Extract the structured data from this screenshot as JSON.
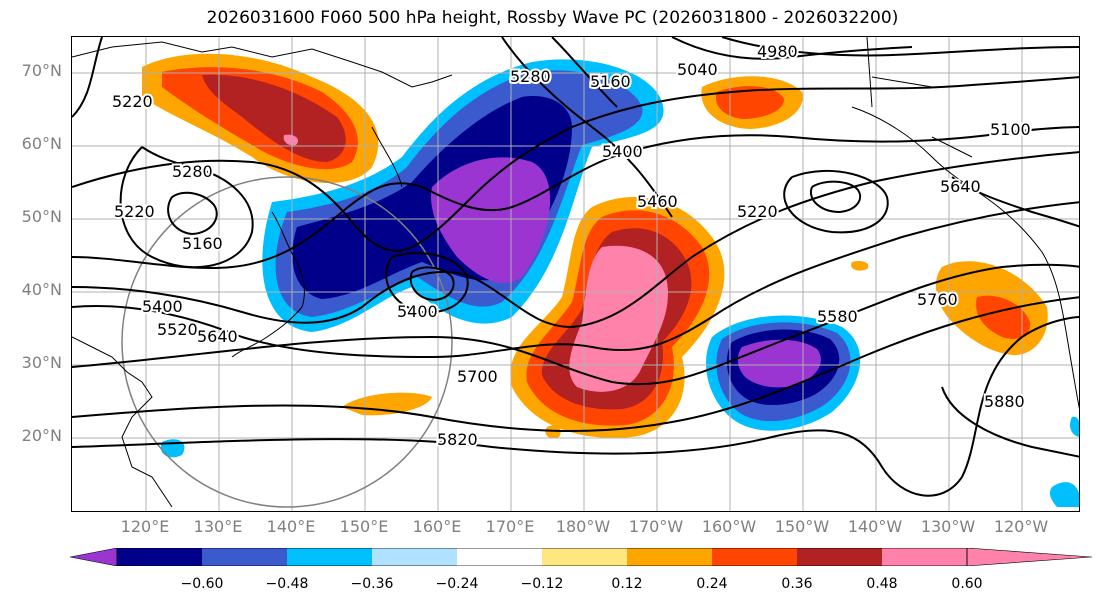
{
  "title": "2026031600 F060 500 hPa height, Rossby Wave PC (2026031800 - 2026032200)",
  "lat_labels": [
    "70°N",
    "60°N",
    "50°N",
    "40°N",
    "30°N",
    "20°N"
  ],
  "lon_labels": [
    "120°E",
    "130°E",
    "140°E",
    "150°E",
    "160°E",
    "170°E",
    "180°W",
    "170°W",
    "160°W",
    "150°W",
    "140°W",
    "130°W",
    "120°W"
  ],
  "contour_labels": [
    "4980",
    "5040",
    "5100",
    "5160",
    "5160",
    "5220",
    "5220",
    "5220",
    "5280",
    "5280",
    "5400",
    "5400",
    "5400",
    "5460",
    "5520",
    "5580",
    "5640",
    "5700",
    "5760",
    "5820",
    "5880",
    "5640"
  ],
  "colorbar": {
    "tick_labels": [
      "−0.60",
      "−0.48",
      "−0.36",
      "−0.24",
      "−0.12",
      "0.12",
      "0.24",
      "0.36",
      "0.48",
      "0.60"
    ],
    "colors": [
      "#9a35d2",
      "#00008b",
      "#3a5acd",
      "#00bfff",
      "#b0e2ff",
      "#ffffff",
      "#ffe680",
      "#ffa500",
      "#ff4500",
      "#b22222",
      "#ff82ab"
    ]
  },
  "colors": {
    "pos_light": "#ffa500",
    "pos_mid": "#ff4500",
    "pos_dark": "#b22222",
    "pos_max": "#ff82ab",
    "neg_light": "#00bfff",
    "neg_mid": "#3a5acd",
    "neg_dark": "#00008b",
    "neg_max": "#9a35d2",
    "contour": "#000000",
    "grid": "#b0b0b0"
  }
}
